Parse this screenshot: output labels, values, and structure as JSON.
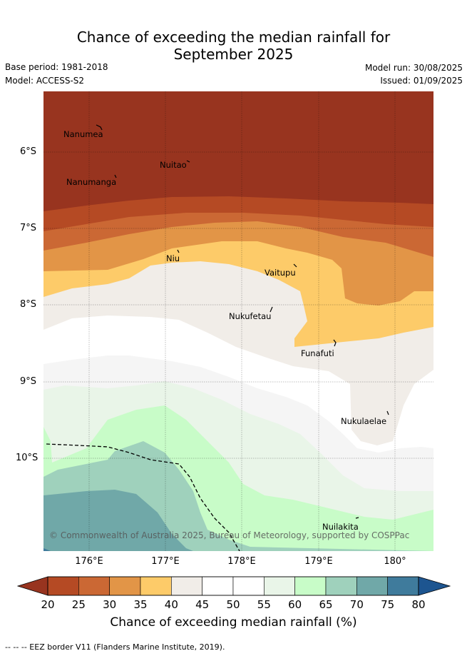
{
  "title": {
    "line1": "Chance of exceeding the median rainfall for",
    "line2": "September 2025"
  },
  "meta": {
    "base_period": "Base period: 1981-2018",
    "model": "Model: ACCESS-S2",
    "model_run": "Model run: 30/08/2025",
    "issued": "Issued: 01/09/2025"
  },
  "map": {
    "lat_labels": [
      "6°S",
      "7°S",
      "8°S",
      "9°S",
      "10°S"
    ],
    "lon_labels": [
      "176°E",
      "177°E",
      "178°E",
      "179°E",
      "180°"
    ],
    "places": [
      "Nanumea",
      "Nuitao",
      "Nanumanga",
      "Niu",
      "Vaitupu",
      "Nukufetau",
      "Funafuti",
      "Nukulaelae",
      "Nuilakita"
    ],
    "copyright": "© Commonwealth of Australia 2025, Bureau of Meteorology, supported by COSPPac",
    "band_colors": {
      "20-25": "#98341f",
      "25-30": "#b54a24",
      "30-35": "#cb6834",
      "35-40": "#e29547",
      "40-45": "#fdcb69",
      "45-50": "#f1ede8",
      "50-55": "#ffffff",
      "55-60": "#e9f5e8",
      "60-65": "#c8fcc8",
      "65-70": "#9fd1bc",
      "70-75": "#70a8a8",
      "75-80": "#3f7b9c"
    }
  },
  "colorbar": {
    "ticks": [
      "20",
      "25",
      "30",
      "35",
      "40",
      "45",
      "50",
      "55",
      "60",
      "65",
      "70",
      "75",
      "80"
    ],
    "colors": [
      "#98341f",
      "#b54a24",
      "#cb6834",
      "#e29547",
      "#fdcb69",
      "#f1ede8",
      "#ffffff",
      "#ffffff",
      "#e9f5e8",
      "#c8fcc8",
      "#9fd1bc",
      "#70a8a8",
      "#3f7b9c",
      "#1d5590"
    ],
    "label": "Chance of exceeding median rainfall (%)"
  },
  "footnote": "--  --  -- EEZ border V11 (Flanders Marine Institute, 2019)."
}
